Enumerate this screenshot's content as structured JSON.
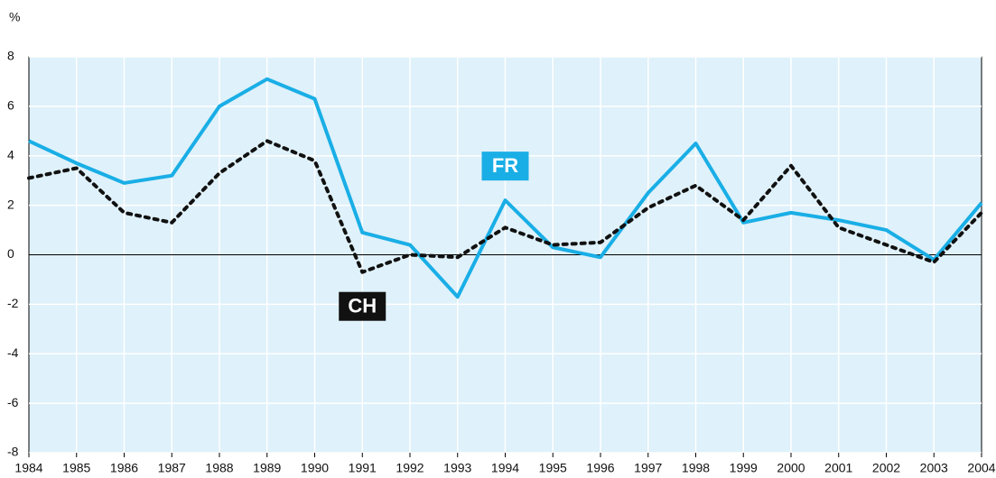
{
  "chart_data": {
    "type": "line",
    "y_label": "%",
    "categories": [
      "1984",
      "1985",
      "1986",
      "1987",
      "1988",
      "1989",
      "1990",
      "1991",
      "1992",
      "1993",
      "1994",
      "1995",
      "1996",
      "1997",
      "1998",
      "1999",
      "2000",
      "2001",
      "2002",
      "2003",
      "2004"
    ],
    "series": [
      {
        "name": "FR",
        "color": "#19aee6",
        "dash": false,
        "values": [
          4.6,
          3.7,
          2.9,
          3.2,
          6.0,
          7.1,
          6.3,
          0.9,
          0.4,
          -1.7,
          2.2,
          0.3,
          -0.1,
          2.5,
          4.5,
          1.3,
          1.7,
          1.4,
          1.0,
          -0.2,
          2.1
        ]
      },
      {
        "name": "CH",
        "color": "#111111",
        "dash": true,
        "values": [
          3.1,
          3.5,
          1.7,
          1.3,
          3.3,
          4.6,
          3.8,
          -0.7,
          0.0,
          -0.1,
          1.1,
          0.4,
          0.5,
          1.9,
          2.8,
          1.4,
          3.6,
          1.1,
          0.4,
          -0.3,
          1.7
        ]
      }
    ],
    "ylim": [
      -8,
      8
    ],
    "yticks": [
      -8,
      -6,
      -4,
      -2,
      0,
      2,
      4,
      6,
      8
    ],
    "grid": true
  }
}
